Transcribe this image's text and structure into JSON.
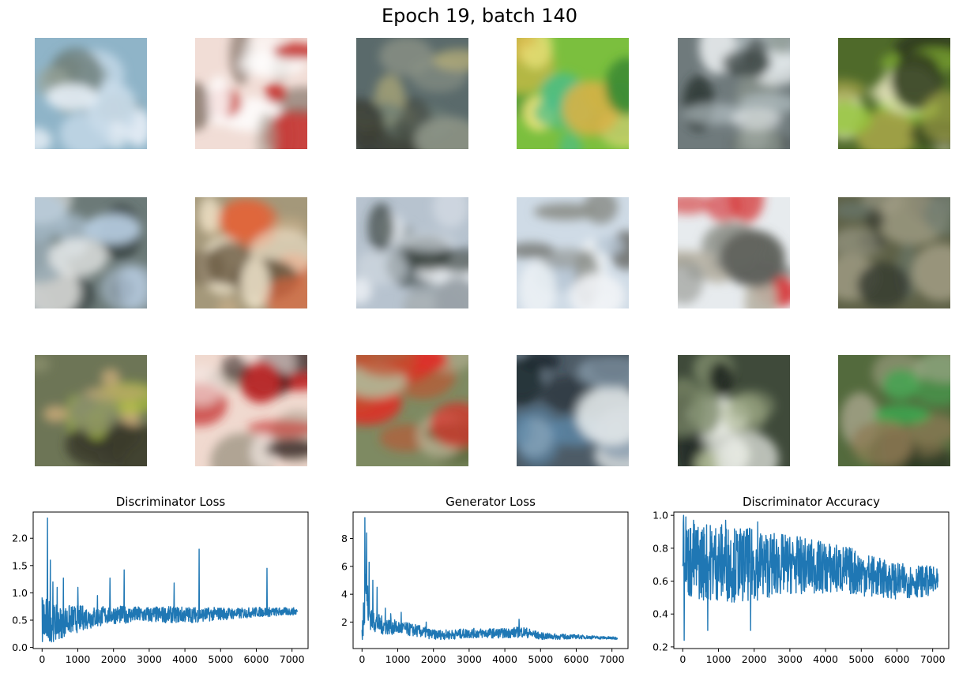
{
  "figure": {
    "title": "Epoch 19, batch 140"
  },
  "samples": {
    "rows": 3,
    "cols": 6,
    "tiles": [
      {
        "bg": "#8fb4c8",
        "blobs": [
          "#e6eef6",
          "#c9dcea",
          "#6b7b78",
          "#9aa59a"
        ]
      },
      {
        "bg": "#f1ddd6",
        "blobs": [
          "#ffffff",
          "#c5352f",
          "#a89f94",
          "#7a6b60"
        ]
      },
      {
        "bg": "#5a6a6b",
        "blobs": [
          "#8c9386",
          "#3b3f36",
          "#b8b07a",
          "#6f7f76"
        ]
      },
      {
        "bg": "#7bbf3e",
        "blobs": [
          "#d8b247",
          "#3f8d34",
          "#e9e27a",
          "#4bbd88"
        ]
      },
      {
        "bg": "#6f7a7c",
        "blobs": [
          "#f3f6f8",
          "#2f3836",
          "#b6c2c6",
          "#88928a"
        ]
      },
      {
        "bg": "#4f6a2a",
        "blobs": [
          "#92c537",
          "#e8e7c0",
          "#2f3a1d",
          "#a5a548"
        ]
      },
      {
        "bg": "#6c7a78",
        "blobs": [
          "#b9cfe3",
          "#f4f4f2",
          "#3d4647",
          "#97a8b2"
        ]
      },
      {
        "bg": "#a4987a",
        "blobs": [
          "#e2643a",
          "#f5ead2",
          "#6a5a43",
          "#c9b08a"
        ]
      },
      {
        "bg": "#b7c3cf",
        "blobs": [
          "#eef2f6",
          "#2f3a35",
          "#9aa3a8",
          "#d6dde4"
        ]
      },
      {
        "bg": "#cfdbe6",
        "blobs": [
          "#8c8f8a",
          "#f1f4f7",
          "#6e706c",
          "#b9c8d6"
        ]
      },
      {
        "bg": "#e7ebee",
        "blobs": [
          "#8f918a",
          "#d63a3b",
          "#b9b4a6",
          "#5f625c"
        ]
      },
      {
        "bg": "#5e6147",
        "blobs": [
          "#8c8c78",
          "#3a3d33",
          "#6b7a6f",
          "#a39f86"
        ]
      },
      {
        "bg": "#6d7556",
        "blobs": [
          "#c7a978",
          "#3a3a2c",
          "#a9c13b",
          "#8a8f6b"
        ]
      },
      {
        "bg": "#f0d9cf",
        "blobs": [
          "#c42a2a",
          "#2e1c1a",
          "#a99f8e",
          "#f5eae6"
        ]
      },
      {
        "bg": "#7e8a62",
        "blobs": [
          "#c34f2d",
          "#df2c25",
          "#5c6a3e",
          "#b7b294"
        ]
      },
      {
        "bg": "#4d5b66",
        "blobs": [
          "#8a9eae",
          "#1f2a2f",
          "#e3e8ea",
          "#5b86a6"
        ]
      },
      {
        "bg": "#3f4a3a",
        "blobs": [
          "#e9ece6",
          "#7d8a6a",
          "#1d2420",
          "#a9b48e"
        ]
      },
      {
        "bg": "#536a3d",
        "blobs": [
          "#3fa64f",
          "#8f7a54",
          "#2d3a24",
          "#a7a58b"
        ]
      }
    ]
  },
  "chart_data": [
    {
      "type": "line",
      "title": "Discriminator Loss",
      "color": "#1f77b4",
      "xlim": [
        -250,
        7450
      ],
      "ylim": [
        -0.02,
        2.48
      ],
      "xticks": [
        0,
        1000,
        2000,
        3000,
        4000,
        5000,
        6000,
        7000
      ],
      "yticks": [
        0.0,
        0.5,
        1.0,
        1.5,
        2.0
      ],
      "series": [
        {
          "x": [
            0,
            100,
            150,
            200,
            300,
            500,
            700,
            1000,
            1200,
            1500,
            1700,
            1900,
            2000,
            2300,
            2500,
            3000,
            3500,
            3700,
            4000,
            4400,
            4500,
            5000,
            5500,
            6000,
            6300,
            6500,
            7000,
            7150
          ],
          "y_mid": [
            0.5,
            0.45,
            0.5,
            0.5,
            0.45,
            0.45,
            0.5,
            0.52,
            0.55,
            0.55,
            0.58,
            0.6,
            0.6,
            0.6,
            0.6,
            0.6,
            0.6,
            0.6,
            0.6,
            0.6,
            0.6,
            0.62,
            0.62,
            0.65,
            0.65,
            0.65,
            0.66,
            0.66
          ],
          "y_band": [
            0.55,
            0.45,
            0.45,
            0.4,
            0.35,
            0.3,
            0.28,
            0.25,
            0.22,
            0.2,
            0.18,
            0.17,
            0.17,
            0.16,
            0.15,
            0.15,
            0.15,
            0.15,
            0.15,
            0.14,
            0.13,
            0.12,
            0.1,
            0.09,
            0.09,
            0.08,
            0.07,
            0.07
          ],
          "spikes": [
            [
              150,
              2.37
            ],
            [
              230,
              1.6
            ],
            [
              300,
              1.2
            ],
            [
              420,
              1.1
            ],
            [
              600,
              1.27
            ],
            [
              1000,
              1.1
            ],
            [
              1550,
              0.95
            ],
            [
              1900,
              1.27
            ],
            [
              2300,
              1.42
            ],
            [
              3700,
              1.18
            ],
            [
              4400,
              1.8
            ],
            [
              6300,
              1.45
            ]
          ]
        }
      ]
    },
    {
      "type": "line",
      "title": "Generator Loss",
      "color": "#1f77b4",
      "xlim": [
        -250,
        7450
      ],
      "ylim": [
        0.1,
        9.9
      ],
      "xticks": [
        0,
        1000,
        2000,
        3000,
        4000,
        5000,
        6000,
        7000
      ],
      "yticks": [
        2,
        4,
        6,
        8
      ],
      "series": [
        {
          "x": [
            0,
            50,
            100,
            150,
            200,
            300,
            400,
            500,
            700,
            1000,
            1500,
            2000,
            2500,
            3000,
            3500,
            4000,
            4500,
            5000,
            5500,
            6000,
            6500,
            7000,
            7150
          ],
          "y_mid": [
            1.0,
            3.0,
            5.5,
            3.5,
            2.6,
            2.2,
            2.0,
            1.8,
            1.7,
            1.6,
            1.4,
            1.1,
            1.1,
            1.2,
            1.2,
            1.2,
            1.3,
            1.0,
            0.95,
            0.95,
            0.9,
            0.85,
            0.85
          ],
          "y_band": [
            0.6,
            1.8,
            2.6,
            1.6,
            1.1,
            0.9,
            0.8,
            0.7,
            0.6,
            0.5,
            0.45,
            0.35,
            0.35,
            0.35,
            0.35,
            0.35,
            0.4,
            0.25,
            0.2,
            0.15,
            0.12,
            0.1,
            0.1
          ],
          "spikes": [
            [
              80,
              9.5
            ],
            [
              130,
              8.4
            ],
            [
              200,
              6.3
            ],
            [
              300,
              5.0
            ],
            [
              420,
              4.5
            ],
            [
              650,
              3.0
            ],
            [
              800,
              2.6
            ],
            [
              1100,
              2.7
            ],
            [
              1800,
              2.0
            ],
            [
              4400,
              2.2
            ]
          ]
        }
      ]
    },
    {
      "type": "line",
      "title": "Discriminator Accuracy",
      "color": "#1f77b4",
      "xlim": [
        -250,
        7450
      ],
      "ylim": [
        0.19,
        1.02
      ],
      "xticks": [
        0,
        1000,
        2000,
        3000,
        4000,
        5000,
        6000,
        7000
      ],
      "yticks": [
        0.2,
        0.4,
        0.6,
        0.8,
        1.0
      ],
      "series": [
        {
          "x": [
            0,
            50,
            100,
            200,
            400,
            700,
            1000,
            1500,
            2000,
            2500,
            3000,
            3500,
            4000,
            4500,
            5000,
            5500,
            6000,
            6500,
            7000,
            7150
          ],
          "y_mid": [
            0.8,
            0.8,
            0.75,
            0.72,
            0.72,
            0.72,
            0.72,
            0.7,
            0.7,
            0.7,
            0.7,
            0.69,
            0.68,
            0.67,
            0.65,
            0.62,
            0.6,
            0.6,
            0.6,
            0.58
          ],
          "y_band": [
            0.2,
            0.2,
            0.22,
            0.24,
            0.24,
            0.24,
            0.24,
            0.23,
            0.22,
            0.2,
            0.18,
            0.17,
            0.16,
            0.15,
            0.14,
            0.12,
            0.11,
            0.1,
            0.09,
            0.09
          ],
          "spikes": [
            [
              20,
              1.0
            ],
            [
              40,
              0.24
            ],
            [
              90,
              0.99
            ],
            [
              300,
              0.97
            ],
            [
              700,
              0.3
            ],
            [
              1900,
              0.3
            ],
            [
              2100,
              0.96
            ],
            [
              1200,
              0.97
            ]
          ]
        }
      ]
    }
  ]
}
